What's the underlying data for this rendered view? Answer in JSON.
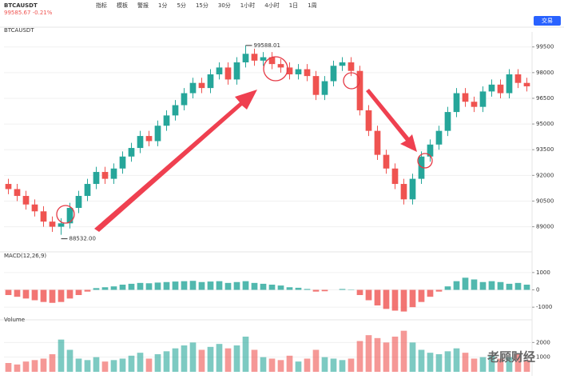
{
  "header": {
    "symbol": "BTCAUSDT",
    "price_change": "99585.67 -0.21%",
    "trade_button": "交易"
  },
  "toolbar": [
    "指标",
    "模板",
    "警报",
    "1分",
    "5分",
    "15分",
    "30分",
    "1小时",
    "4小时",
    "1日",
    "1周"
  ],
  "watermark": "老顾财经",
  "chart_data": [
    {
      "type": "candlestick",
      "title": "BTCAUSDT",
      "open": [
        91500,
        91200,
        90800,
        90300,
        89900,
        89300,
        89000,
        89200,
        90100,
        90800,
        91500,
        92200,
        91800,
        92400,
        93100,
        93600,
        94300,
        94000,
        94900,
        95500,
        96100,
        96800,
        97400,
        97100,
        97900,
        98300,
        97600,
        98600,
        99100,
        98700,
        98900,
        98500,
        98300,
        97900,
        98200,
        97800,
        96700,
        97500,
        98400,
        98600,
        98100,
        95800,
        94600,
        93200,
        92400,
        91500,
        90600,
        91800,
        93100,
        93800,
        94600,
        95700,
        96800,
        96300,
        96000,
        96900,
        97300,
        96800,
        97900,
        97400
      ],
      "high": [
        91800,
        91500,
        91100,
        90600,
        90200,
        89600,
        89500,
        90400,
        91100,
        91800,
        92500,
        92500,
        92700,
        93400,
        93900,
        94600,
        94600,
        95200,
        95800,
        96400,
        97100,
        97700,
        97700,
        98200,
        98600,
        98600,
        98900,
        99588,
        99400,
        99200,
        99200,
        98800,
        98600,
        98500,
        98500,
        98100,
        97800,
        98700,
        98900,
        98900,
        98400,
        96100,
        94900,
        93500,
        92700,
        91800,
        92100,
        93400,
        94100,
        94900,
        96000,
        97100,
        97100,
        96600,
        97200,
        97600,
        97600,
        98200,
        98200,
        97700
      ],
      "low": [
        90900,
        90500,
        90000,
        89600,
        89000,
        88700,
        88532,
        88900,
        89800,
        90500,
        91200,
        91500,
        91500,
        92100,
        92800,
        93300,
        93700,
        93700,
        94600,
        95200,
        95800,
        96500,
        96800,
        96800,
        97600,
        97300,
        97300,
        98300,
        98400,
        98400,
        98200,
        98000,
        97600,
        97600,
        97500,
        96400,
        96400,
        97200,
        98100,
        97800,
        95500,
        94300,
        92900,
        92100,
        91200,
        90300,
        90300,
        91500,
        92800,
        93500,
        94300,
        95400,
        96000,
        95700,
        95700,
        96600,
        96500,
        96500,
        97100,
        96900
      ],
      "close": [
        91200,
        90800,
        90300,
        89900,
        89300,
        89000,
        89200,
        90100,
        90800,
        91500,
        92200,
        91800,
        92400,
        93100,
        93600,
        94300,
        94000,
        94900,
        95500,
        96100,
        96800,
        97400,
        97100,
        97900,
        98300,
        97600,
        98600,
        99100,
        98700,
        98900,
        98500,
        98300,
        97900,
        98200,
        97800,
        96700,
        97500,
        98400,
        98600,
        98100,
        95800,
        94600,
        93200,
        92400,
        91500,
        90600,
        91800,
        93100,
        93800,
        94600,
        95700,
        96800,
        96300,
        96000,
        96900,
        97300,
        96800,
        97900,
        97400,
        97200
      ],
      "up_color": "#26a69a",
      "down_color": "#ef5350",
      "ylim": [
        88000,
        100000
      ],
      "yticks": [
        89000,
        90500,
        92000,
        93500,
        95000,
        96500,
        98000,
        99500
      ],
      "grid": true,
      "annotations": {
        "high": "99588.01",
        "low": "88532.00"
      }
    },
    {
      "type": "histogram",
      "title": "MACD(12,26,9)",
      "values": [
        -300,
        -400,
        -500,
        -600,
        -700,
        -750,
        -700,
        -500,
        -300,
        -100,
        100,
        150,
        200,
        300,
        350,
        400,
        380,
        420,
        450,
        480,
        500,
        520,
        450,
        480,
        500,
        400,
        450,
        500,
        400,
        350,
        300,
        250,
        150,
        120,
        50,
        -100,
        -80,
        0,
        50,
        20,
        -300,
        -600,
        -900,
        -1100,
        -1200,
        -1250,
        -1000,
        -700,
        -400,
        -100,
        200,
        500,
        700,
        600,
        450,
        500,
        450,
        350,
        400,
        300
      ],
      "up_color": "#26a69a",
      "down_color": "#ef5350",
      "ylim": [
        -1500,
        1500
      ],
      "yticks": [
        -1000,
        0,
        1000
      ],
      "grid": true
    },
    {
      "type": "volume",
      "title": "Volume",
      "values": [
        600,
        500,
        700,
        800,
        900,
        1200,
        2200,
        1500,
        900,
        800,
        1000,
        700,
        800,
        900,
        1100,
        1300,
        900,
        1200,
        1400,
        1600,
        1800,
        2000,
        1500,
        1700,
        1900,
        1600,
        1800,
        2400,
        1500,
        1000,
        900,
        800,
        1100,
        700,
        900,
        1500,
        1000,
        900,
        800,
        900,
        2100,
        2500,
        2300,
        2000,
        2400,
        2800,
        2000,
        1500,
        1300,
        1200,
        1400,
        1600,
        1300,
        900,
        1000,
        1100,
        900,
        1000,
        1200,
        800
      ],
      "up_color": "#26a69a",
      "down_color": "#ef5350",
      "ylim": [
        0,
        3000
      ],
      "yticks": [
        1000,
        2000
      ],
      "grid": true
    }
  ]
}
